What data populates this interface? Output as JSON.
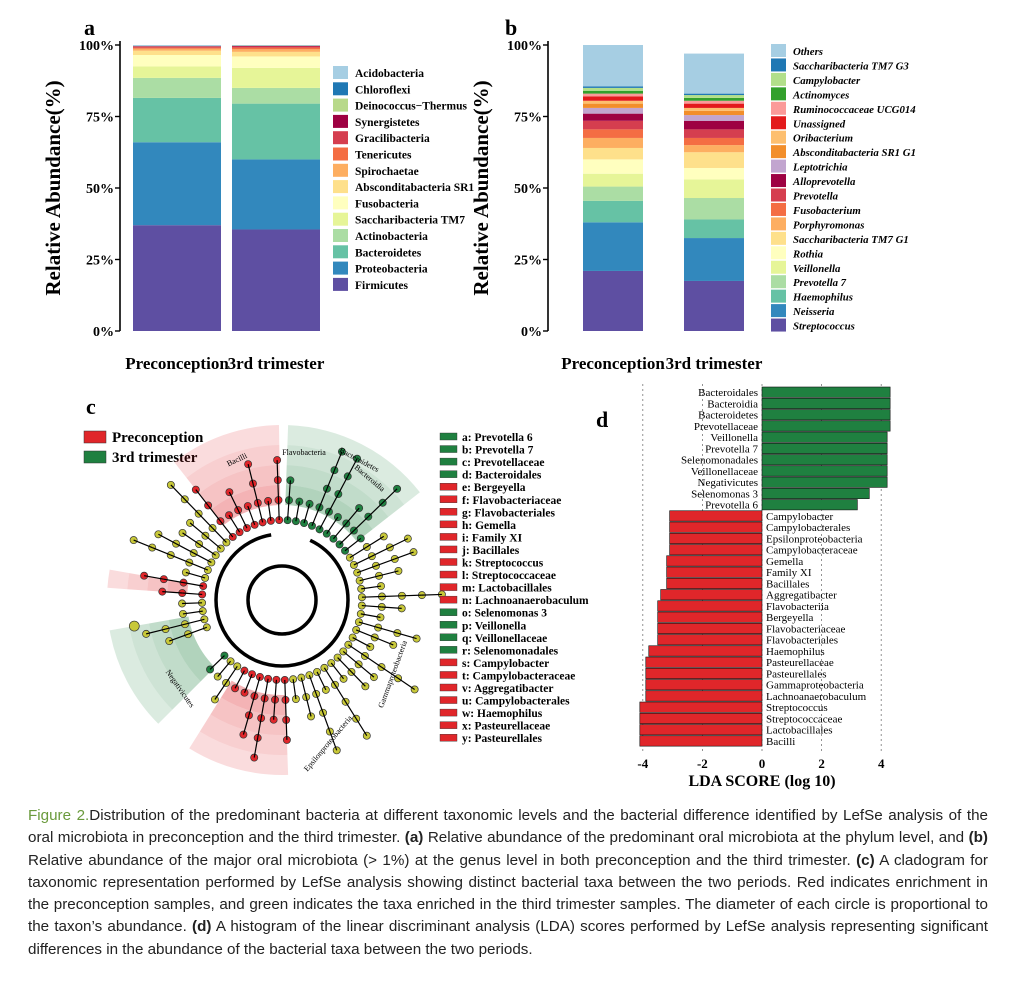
{
  "panels": {
    "a": "a",
    "b": "b",
    "c": "c",
    "d": "d"
  },
  "colors": {
    "pre": "#e0262a",
    "third": "#1f8040"
  },
  "chart_data": [
    {
      "id": "a",
      "type": "bar",
      "stacked": true,
      "ylabel": "Relative Abundance(%)",
      "yticks": [
        "0%",
        "25%",
        "50%",
        "75%",
        "100%"
      ],
      "ylim": [
        0,
        100
      ],
      "categories": [
        "Preconception",
        "3rd trimester"
      ],
      "series": [
        {
          "name": "Firmicutes",
          "color": "#5e4fa2",
          "values": [
            37,
            35.5
          ]
        },
        {
          "name": "Proteobacteria",
          "color": "#3288bd",
          "values": [
            29,
            24.5
          ]
        },
        {
          "name": "Bacteroidetes",
          "color": "#66c2a5",
          "values": [
            15.5,
            19.5
          ]
        },
        {
          "name": "Actinobacteria",
          "color": "#abdda4",
          "values": [
            7,
            5.5
          ]
        },
        {
          "name": "Saccharibacteria TM7",
          "color": "#e6f598",
          "values": [
            4,
            7
          ]
        },
        {
          "name": "Fusobacteria",
          "color": "#ffffbf",
          "values": [
            4,
            4
          ]
        },
        {
          "name": "Absconditabacteria SR1",
          "color": "#fee08b",
          "values": [
            1.5,
            1.6
          ]
        },
        {
          "name": "Spirochaetae",
          "color": "#fdae61",
          "values": [
            0.7,
            0.9
          ]
        },
        {
          "name": "Tenericutes",
          "color": "#f46d43",
          "values": [
            0.4,
            0.6
          ]
        },
        {
          "name": "Gracilibacteria",
          "color": "#d53e4f",
          "values": [
            0.3,
            0.4
          ]
        },
        {
          "name": "Synergistetes",
          "color": "#9e0142",
          "values": [
            0.2,
            0.2
          ]
        },
        {
          "name": "Deinococcus−Thermus",
          "color": "#b8d98a",
          "values": [
            0.1,
            0.1
          ]
        },
        {
          "name": "Chloroflexi",
          "color": "#1f78b4",
          "values": [
            0.1,
            0.1
          ]
        },
        {
          "name": "Acidobacteria",
          "color": "#a6cee3",
          "values": [
            0.1,
            0.1
          ]
        }
      ]
    },
    {
      "id": "b",
      "type": "bar",
      "stacked": true,
      "ylabel": "Relative Abundance(%)",
      "yticks": [
        "0%",
        "25%",
        "50%",
        "75%",
        "100%"
      ],
      "ylim": [
        0,
        100
      ],
      "categories": [
        "Preconception",
        "3rd trimester"
      ],
      "series": [
        {
          "name": "Streptococcus",
          "color": "#5e4fa2",
          "values": [
            21,
            17.5
          ]
        },
        {
          "name": "Neisseria",
          "color": "#3288bd",
          "values": [
            17,
            15
          ]
        },
        {
          "name": "Haemophilus",
          "color": "#66c2a5",
          "values": [
            7.5,
            6.5
          ]
        },
        {
          "name": "Prevotella 7",
          "color": "#abdda4",
          "values": [
            5,
            7.5
          ]
        },
        {
          "name": "Veillonella",
          "color": "#e6f598",
          "values": [
            4.5,
            6.5
          ]
        },
        {
          "name": "Rothia",
          "color": "#ffffbf",
          "values": [
            5,
            4
          ]
        },
        {
          "name": "Saccharibacteria TM7 G1",
          "color": "#fee08b",
          "values": [
            4,
            5.5
          ]
        },
        {
          "name": "Porphyromonas",
          "color": "#fdae61",
          "values": [
            3.5,
            2.5
          ]
        },
        {
          "name": "Fusobacterium",
          "color": "#f46d43",
          "values": [
            3,
            2.5
          ]
        },
        {
          "name": "Prevotella",
          "color": "#d53e4f",
          "values": [
            3,
            3
          ]
        },
        {
          "name": "Alloprevotella",
          "color": "#9e0142",
          "values": [
            2.5,
            3
          ]
        },
        {
          "name": "Leptotrichia",
          "color": "#c2a5cf",
          "values": [
            2,
            2
          ]
        },
        {
          "name": "Absconditabacteria SR1 G1",
          "color": "#f28e2b",
          "values": [
            1.5,
            1.5
          ]
        },
        {
          "name": "Oribacterium",
          "color": "#fdbf6f",
          "values": [
            1,
            1
          ]
        },
        {
          "name": "Unassigned",
          "color": "#e31a1c",
          "values": [
            1.5,
            1.5
          ]
        },
        {
          "name": "Ruminococcaceae UCG014",
          "color": "#fb9a99",
          "values": [
            1,
            1
          ]
        },
        {
          "name": "Actinomyces",
          "color": "#33a02c",
          "values": [
            1,
            1
          ]
        },
        {
          "name": "Campylobacter",
          "color": "#b2df8a",
          "values": [
            1,
            1
          ]
        },
        {
          "name": "Saccharibacteria TM7 G3",
          "color": "#1f78b4",
          "values": [
            0.5,
            0.5
          ]
        },
        {
          "name": "Others",
          "color": "#a6cee3",
          "values": [
            14.5,
            14
          ]
        }
      ]
    },
    {
      "id": "d",
      "type": "bar",
      "orientation": "horizontal",
      "xlabel": "LDA SCORE (log 10)",
      "xlim": [
        -4.6,
        4.6
      ],
      "xticks": [
        "-4",
        "-2",
        "0",
        "2",
        "4"
      ],
      "categories": [
        "Bacteroidales",
        "Bacteroidia",
        "Bacteroidetes",
        "Prevotellaceae",
        "Veillonella",
        "Prevotella 7",
        "Selenomonadales",
        "Veillonellaceae",
        "Negativicutes",
        "Selenomonas 3",
        "Prevotella 6",
        "Campylobacter",
        "Campylobacterales",
        "Epsilonproteobacteria",
        "Campylobacteraceae",
        "Gemella",
        "Family XI",
        "Bacillales",
        "Aggregatibacter",
        "Flavobacteriia",
        "Bergeyella",
        "Flavobacteriaceae",
        "Flavobacteriales",
        "Haemophilus",
        "Pasteurellaceae",
        "Pasteurellales",
        "Gammaproteobacteria",
        "Lachnoanaerobaculum",
        "Streptococcus",
        "Streptococcaceae",
        "Lactobacillales",
        "Bacilli"
      ],
      "values": [
        4.3,
        4.3,
        4.3,
        4.3,
        4.2,
        4.2,
        4.2,
        4.2,
        4.2,
        3.6,
        3.2,
        -3.1,
        -3.1,
        -3.1,
        -3.1,
        -3.2,
        -3.2,
        -3.2,
        -3.4,
        -3.5,
        -3.5,
        -3.5,
        -3.5,
        -3.8,
        -3.9,
        -3.9,
        -3.9,
        -3.9,
        -4.1,
        -4.1,
        -4.1,
        -4.1
      ]
    }
  ],
  "cladogram": {
    "legend_groups": [
      {
        "label": "Preconception",
        "color": "#e0262a"
      },
      {
        "label": "3rd trimester",
        "color": "#1f8040"
      }
    ],
    "clade_labels": [
      "Bacilli",
      "Flavobacteria",
      "Bacteroidetes",
      "Bacteroidia",
      "Negativicutes",
      "Gammaproteobacteria",
      "Epsilonproteobacteria"
    ],
    "key": [
      {
        "text": "a: Prevotella 6",
        "group": "third"
      },
      {
        "text": "b: Prevotella 7",
        "group": "third"
      },
      {
        "text": "c: Prevotellaceae",
        "group": "third"
      },
      {
        "text": "d: Bacteroidales",
        "group": "third"
      },
      {
        "text": "e: Bergeyella",
        "group": "pre"
      },
      {
        "text": "f: Flavobacteriaceae",
        "group": "pre"
      },
      {
        "text": "g: Flavobacteriales",
        "group": "pre"
      },
      {
        "text": "h: Gemella",
        "group": "pre"
      },
      {
        "text": "i: Family XI",
        "group": "pre"
      },
      {
        "text": "j: Bacillales",
        "group": "pre"
      },
      {
        "text": "k: Streptococcus",
        "group": "pre"
      },
      {
        "text": "l: Streptococcaceae",
        "group": "pre"
      },
      {
        "text": "m: Lactobacillales",
        "group": "pre"
      },
      {
        "text": "n: Lachnoanaerobaculum",
        "group": "pre"
      },
      {
        "text": "o: Selenomonas 3",
        "group": "third"
      },
      {
        "text": "p: Veillonella",
        "group": "third"
      },
      {
        "text": "q: Veillonellaceae",
        "group": "third"
      },
      {
        "text": "r: Selenomonadales",
        "group": "third"
      },
      {
        "text": "s: Campylobacter",
        "group": "pre"
      },
      {
        "text": "t: Campylobacteraceae",
        "group": "pre"
      },
      {
        "text": "v: Aggregatibacter",
        "group": "pre"
      },
      {
        "text": "u: Campylobacterales",
        "group": "pre"
      },
      {
        "text": "w: Haemophilus",
        "group": "pre"
      },
      {
        "text": "x: Pasteurellaceae",
        "group": "pre"
      },
      {
        "text": "y: Pasteurellales",
        "group": "pre"
      }
    ]
  },
  "caption": {
    "lead": "Figure 2.",
    "text_1": "Distribution of the predominant bacteria at different taxonomic levels and the bacterial difference identified by LefSe analysis of the oral microbiota in preconception and the third trimester. ",
    "a_tag": "(a)",
    "text_2": " Relative abundance of the predominant oral microbiota at the phylum level, and ",
    "b_tag": "(b)",
    "text_3": " Relative abundance of the major oral microbiota (> 1%) at the genus level in both preconception and the third trimester. ",
    "c_tag": "(c)",
    "text_4": " A cladogram for taxonomic representation performed by LefSe analysis showing distinct bacterial taxa between the two periods. Red indicates enrichment in the preconception samples, and green indicates the taxa enriched in the third trimester samples. The diameter of each circle is proportional to the taxon’s abundance. ",
    "d_tag": "(d)",
    "text_5": " A histogram of the linear discriminant analysis (LDA) scores performed by LefSe analysis representing significant differences in the abundance of the bacterial taxa between the two periods."
  }
}
